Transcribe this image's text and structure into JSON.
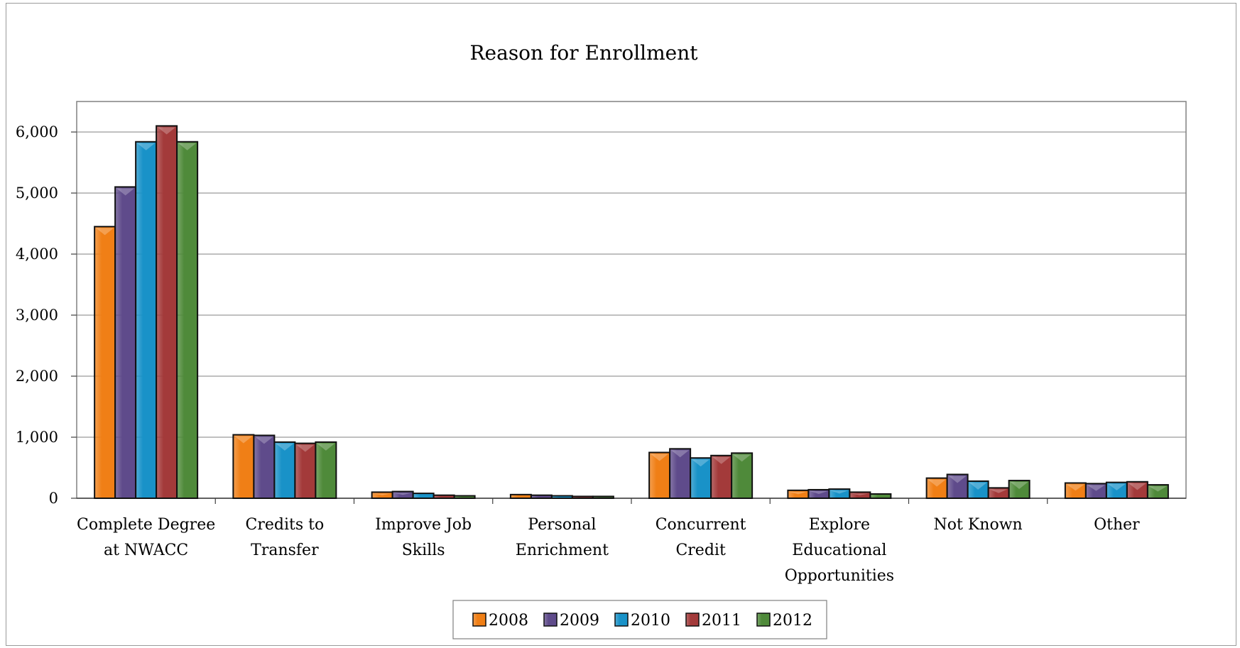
{
  "chart_data": {
    "type": "bar",
    "title": "Reason for Enrollment",
    "xlabel": "",
    "ylabel": "",
    "ylim": [
      0,
      6500
    ],
    "yticks": [
      0,
      1000,
      2000,
      3000,
      4000,
      5000,
      6000
    ],
    "ytick_labels": [
      "0",
      "1,000",
      "2,000",
      "3,000",
      "4,000",
      "5,000",
      "6,000"
    ],
    "grid": true,
    "legend_position": "bottom",
    "categories": [
      [
        "Complete Degree",
        "at NWACC"
      ],
      [
        "Credits to",
        "Transfer"
      ],
      [
        "Improve Job",
        "Skills"
      ],
      [
        "Personal",
        "Enrichment"
      ],
      [
        "Concurrent",
        "Credit"
      ],
      [
        "Explore",
        "Educational",
        "Opportunities"
      ],
      [
        "Not Known"
      ],
      [
        "Other"
      ]
    ],
    "series": [
      {
        "name": "2008",
        "color": "#f07f16",
        "values": [
          4450,
          1040,
          100,
          60,
          750,
          130,
          330,
          250
        ]
      },
      {
        "name": "2009",
        "color": "#5f4b8b",
        "values": [
          5100,
          1030,
          110,
          50,
          810,
          140,
          390,
          240
        ]
      },
      {
        "name": "2010",
        "color": "#1992c8",
        "values": [
          5840,
          920,
          80,
          40,
          660,
          150,
          280,
          260
        ]
      },
      {
        "name": "2011",
        "color": "#a33a3a",
        "values": [
          6100,
          900,
          50,
          30,
          700,
          100,
          170,
          270
        ]
      },
      {
        "name": "2012",
        "color": "#4f8a3a",
        "values": [
          5840,
          920,
          40,
          30,
          740,
          70,
          290,
          220
        ]
      }
    ]
  }
}
